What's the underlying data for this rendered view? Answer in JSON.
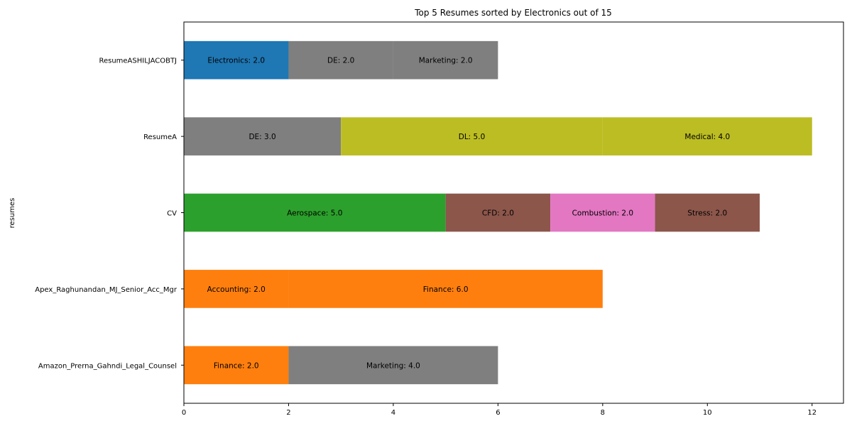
{
  "chart_data": {
    "type": "bar",
    "orientation": "horizontal",
    "stacked": true,
    "title": "Top 5 Resumes sorted by Electronics out of 15",
    "xlabel": "",
    "ylabel": "resumes",
    "xlim": [
      0,
      12.6
    ],
    "xticks": [
      0,
      2,
      4,
      6,
      8,
      10,
      12
    ],
    "grid": false,
    "categories": [
      "ResumeASHILJACOBTJ",
      "ResumeA",
      "CV",
      "Apex_Raghunandan_MJ_Senior_Acc_Mgr",
      "Amazon_Prerna_Gahndi_Legal_Counsel"
    ],
    "rows": [
      {
        "category": "ResumeASHILJACOBTJ",
        "segments": [
          {
            "name": "Electronics",
            "value": 2.0,
            "label": "Electronics: 2.0",
            "color": "#1f77b4"
          },
          {
            "name": "DE",
            "value": 2.0,
            "label": "DE: 2.0",
            "color": "#7f7f7f"
          },
          {
            "name": "Marketing",
            "value": 2.0,
            "label": "Marketing: 2.0",
            "color": "#7f7f7f"
          }
        ]
      },
      {
        "category": "ResumeA",
        "segments": [
          {
            "name": "DE",
            "value": 3.0,
            "label": "DE: 3.0",
            "color": "#7f7f7f"
          },
          {
            "name": "DL",
            "value": 5.0,
            "label": "DL: 5.0",
            "color": "#bcbd22"
          },
          {
            "name": "Medical",
            "value": 4.0,
            "label": "Medical: 4.0",
            "color": "#bcbd22"
          }
        ]
      },
      {
        "category": "CV",
        "segments": [
          {
            "name": "Aerospace",
            "value": 5.0,
            "label": "Aerospace: 5.0",
            "color": "#2ca02c"
          },
          {
            "name": "CFD",
            "value": 2.0,
            "label": "CFD: 2.0",
            "color": "#8c564b"
          },
          {
            "name": "Combustion",
            "value": 2.0,
            "label": "Combustion: 2.0",
            "color": "#e377c2"
          },
          {
            "name": "Stress",
            "value": 2.0,
            "label": "Stress: 2.0",
            "color": "#8c564b"
          }
        ]
      },
      {
        "category": "Apex_Raghunandan_MJ_Senior_Acc_Mgr",
        "segments": [
          {
            "name": "Accounting",
            "value": 2.0,
            "label": "Accounting: 2.0",
            "color": "#ff7f0e"
          },
          {
            "name": "Finance",
            "value": 6.0,
            "label": "Finance: 6.0",
            "color": "#ff7f0e"
          }
        ]
      },
      {
        "category": "Amazon_Prerna_Gahndi_Legal_Counsel",
        "segments": [
          {
            "name": "Finance",
            "value": 2.0,
            "label": "Finance: 2.0",
            "color": "#ff7f0e"
          },
          {
            "name": "Marketing",
            "value": 4.0,
            "label": "Marketing: 4.0",
            "color": "#7f7f7f"
          }
        ]
      }
    ]
  }
}
